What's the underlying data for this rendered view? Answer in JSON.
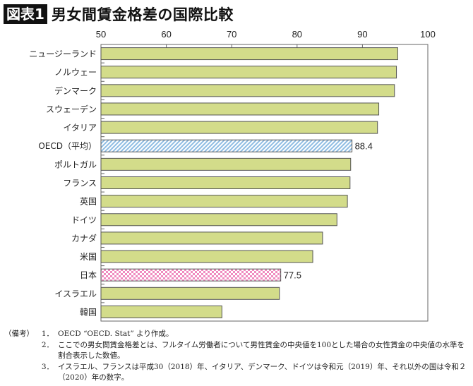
{
  "title_tag": "図表1",
  "title": "男女間賃金格差の国際比較",
  "chart_data": {
    "type": "bar",
    "orientation": "horizontal",
    "xlim": [
      50,
      100
    ],
    "xticks": [
      "50",
      "60",
      "70",
      "80",
      "90",
      "100"
    ],
    "xaxis_position": "top",
    "grid": false,
    "categories": [
      "ニュージーランド",
      "ノルウェー",
      "デンマーク",
      "スウェーデン",
      "イタリア",
      "OECD（平均）",
      "ポルトガル",
      "フランス",
      "英国",
      "ドイツ",
      "カナダ",
      "米国",
      "日本",
      "イスラエル",
      "韓国"
    ],
    "values": [
      95.4,
      95.2,
      94.9,
      92.5,
      92.3,
      88.4,
      88.2,
      88.1,
      87.7,
      86.1,
      83.9,
      82.4,
      77.5,
      77.3,
      68.5
    ],
    "data_labels": {
      "5": "88.4",
      "12": "77.5"
    },
    "colors": {
      "default": "#d3dc8a",
      "oecd": "#a9cbe8",
      "japan": "#f0a0c8",
      "outline": "#555555"
    }
  },
  "notes": {
    "head": "（備考）",
    "items": [
      {
        "num": "1．",
        "text": "OECD “OECD. Stat” より作成。"
      },
      {
        "num": "2．",
        "text": "ここでの男女間賃金格差とは、フルタイム労働者について男性賃金の中央値を100とした場合の女性賃金の中央値の水準を割合表示した数値。"
      },
      {
        "num": "3．",
        "text": "イスラエル、フランスは平成30（2018）年、イタリア、デンマーク、ドイツは令和元（2019）年、それ以外の国は令和２（2020）年の数字。"
      }
    ]
  }
}
